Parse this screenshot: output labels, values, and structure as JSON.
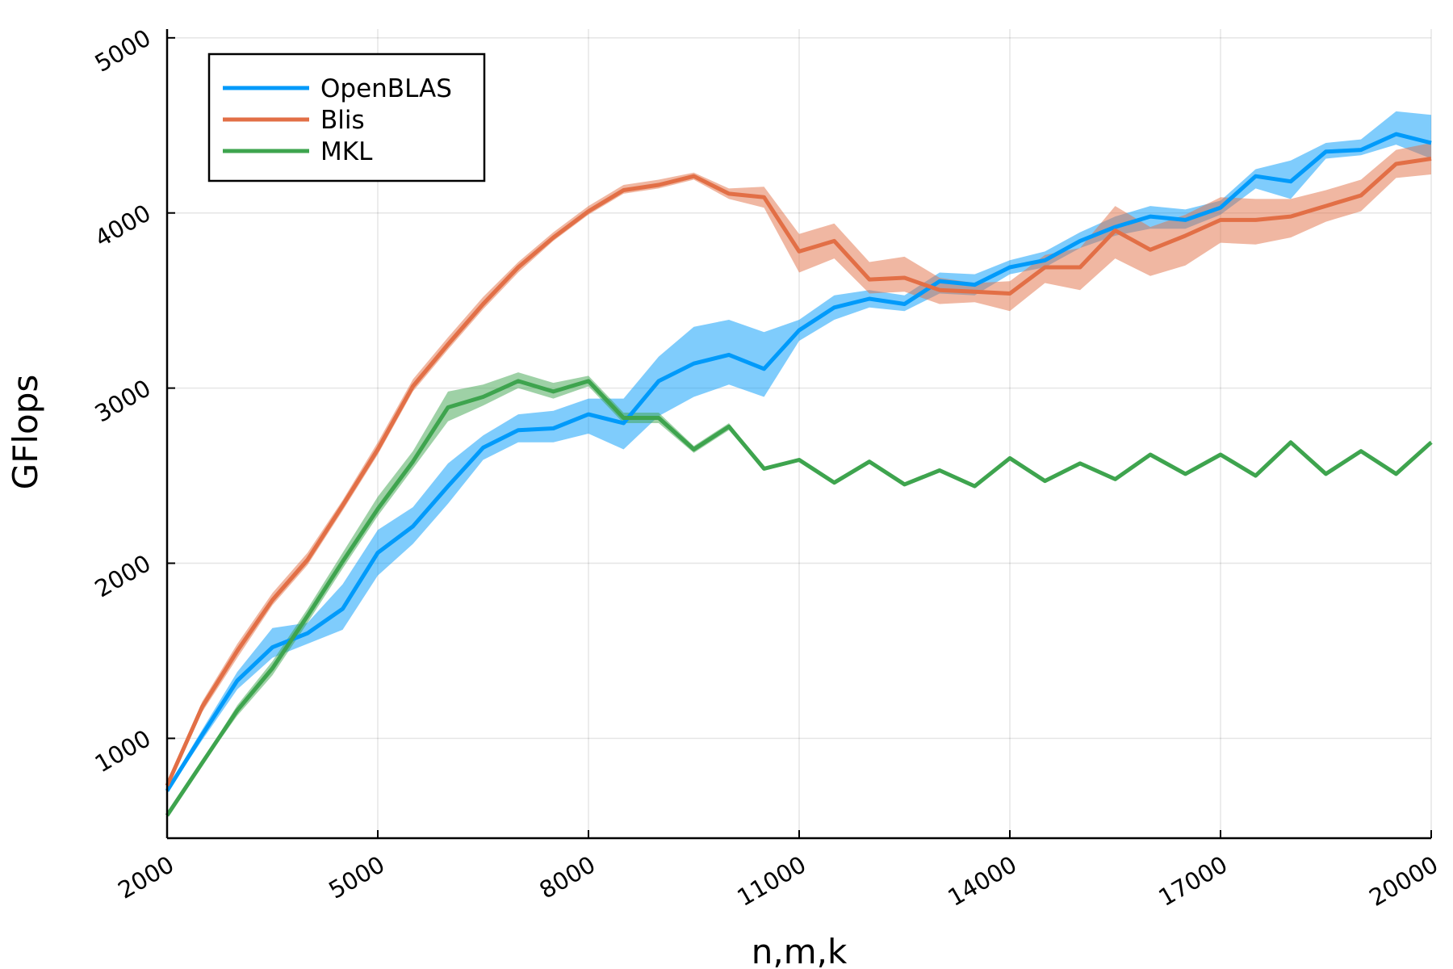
{
  "chart_data": {
    "type": "line",
    "xlabel": "n,m,k",
    "ylabel": "GFlops",
    "xlim": [
      2000,
      20000
    ],
    "ylim": [
      430,
      5050
    ],
    "xticks": [
      2000,
      5000,
      8000,
      11000,
      14000,
      17000,
      20000
    ],
    "yticks": [
      1000,
      2000,
      3000,
      4000,
      5000
    ],
    "grid": true,
    "legend_position": "top-left",
    "x": [
      2000,
      2500,
      3000,
      3500,
      4000,
      4500,
      5000,
      5500,
      6000,
      6500,
      7000,
      7500,
      8000,
      8500,
      9000,
      9500,
      10000,
      10500,
      11000,
      11500,
      12000,
      12500,
      13000,
      13500,
      14000,
      14500,
      15000,
      15500,
      16000,
      16500,
      17000,
      17500,
      18000,
      18500,
      19000,
      19500,
      20000
    ],
    "series": [
      {
        "name": "OpenBLAS",
        "color": "#009AFA",
        "values": [
          700,
          1020,
          1330,
          1520,
          1600,
          1740,
          2060,
          2210,
          2440,
          2660,
          2760,
          2770,
          2850,
          2800,
          3040,
          3140,
          3190,
          3110,
          3330,
          3460,
          3510,
          3480,
          3610,
          3590,
          3690,
          3730,
          3840,
          3920,
          3980,
          3960,
          4030,
          4210,
          4180,
          4350,
          4360,
          4450,
          4400
        ],
        "lower": [
          690,
          990,
          1280,
          1460,
          1540,
          1620,
          1930,
          2110,
          2340,
          2590,
          2690,
          2690,
          2740,
          2650,
          2840,
          2950,
          3020,
          2950,
          3270,
          3390,
          3460,
          3440,
          3540,
          3530,
          3650,
          3690,
          3800,
          3870,
          3910,
          3910,
          3990,
          4140,
          4080,
          4310,
          4330,
          4390,
          4310
        ],
        "upper": [
          715,
          1050,
          1380,
          1630,
          1660,
          1880,
          2190,
          2320,
          2570,
          2730,
          2850,
          2870,
          2940,
          2940,
          3180,
          3350,
          3390,
          3320,
          3390,
          3530,
          3560,
          3530,
          3660,
          3650,
          3730,
          3780,
          3890,
          3980,
          4040,
          4020,
          4070,
          4250,
          4300,
          4400,
          4420,
          4580,
          4560
        ]
      },
      {
        "name": "Blis",
        "color": "#E26F46",
        "values": [
          730,
          1180,
          1500,
          1790,
          2020,
          2330,
          2650,
          3010,
          3250,
          3480,
          3690,
          3860,
          4010,
          4130,
          4160,
          4210,
          4110,
          4090,
          3780,
          3840,
          3620,
          3630,
          3560,
          3550,
          3540,
          3690,
          3690,
          3900,
          3790,
          3870,
          3960,
          3960,
          3980,
          4040,
          4100,
          4280,
          4310
        ],
        "lower": [
          710,
          1150,
          1460,
          1760,
          1990,
          2300,
          2620,
          2980,
          3220,
          3450,
          3660,
          3840,
          3990,
          4110,
          4140,
          4190,
          4080,
          4030,
          3660,
          3740,
          3540,
          3550,
          3480,
          3490,
          3440,
          3600,
          3560,
          3740,
          3640,
          3700,
          3830,
          3820,
          3860,
          3950,
          4010,
          4200,
          4220
        ],
        "upper": [
          750,
          1210,
          1540,
          1830,
          2060,
          2360,
          2690,
          3050,
          3290,
          3520,
          3720,
          3890,
          4040,
          4160,
          4190,
          4230,
          4140,
          4150,
          3880,
          3940,
          3720,
          3750,
          3630,
          3600,
          3610,
          3760,
          3800,
          4040,
          3920,
          3990,
          4090,
          4080,
          4080,
          4130,
          4190,
          4360,
          4400
        ]
      },
      {
        "name": "MKL",
        "color": "#3EA44E",
        "values": [
          560,
          860,
          1160,
          1400,
          1700,
          2010,
          2310,
          2580,
          2890,
          2950,
          3040,
          2980,
          3040,
          2830,
          2830,
          2650,
          2780,
          2540,
          2590,
          2460,
          2580,
          2450,
          2530,
          2440,
          2600,
          2470,
          2570,
          2480,
          2620,
          2510,
          2620,
          2500,
          2690,
          2510,
          2640,
          2510,
          2690
        ],
        "lower": [
          550,
          850,
          1130,
          1360,
          1660,
          1970,
          2270,
          2540,
          2810,
          2900,
          3000,
          2940,
          3010,
          2800,
          2800,
          2630,
          2760,
          2530,
          2580,
          2450,
          2570,
          2440,
          2520,
          2430,
          2590,
          2460,
          2560,
          2470,
          2610,
          2500,
          2610,
          2490,
          2680,
          2500,
          2630,
          2500,
          2680
        ],
        "upper": [
          570,
          870,
          1190,
          1440,
          1740,
          2060,
          2380,
          2640,
          2980,
          3020,
          3090,
          3030,
          3070,
          2860,
          2860,
          2670,
          2800,
          2550,
          2600,
          2470,
          2590,
          2460,
          2540,
          2450,
          2610,
          2480,
          2580,
          2490,
          2630,
          2520,
          2630,
          2510,
          2700,
          2520,
          2650,
          2520,
          2700
        ]
      }
    ]
  }
}
